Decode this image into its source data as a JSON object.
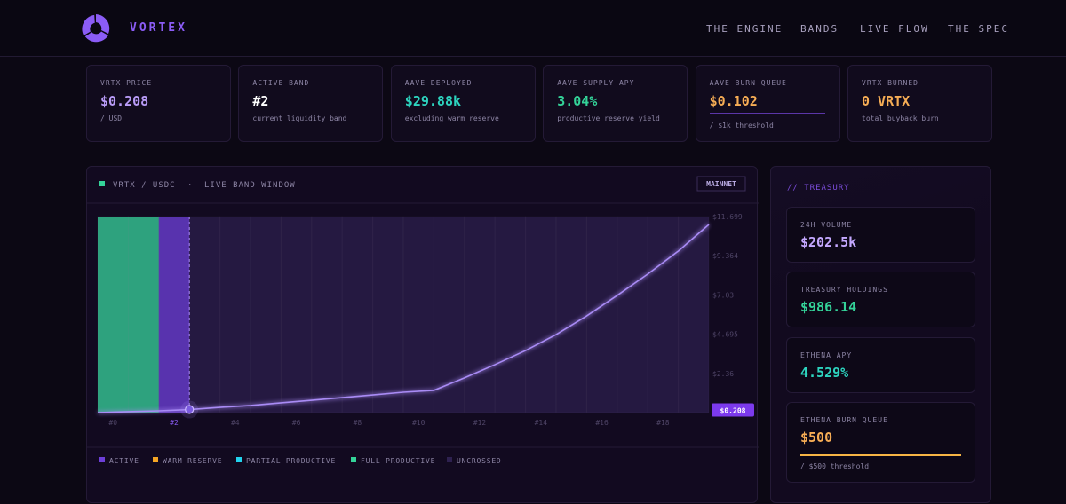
{
  "nav": {
    "brand": "VORTEX",
    "links": [
      "THE ENGINE",
      "BANDS",
      "LIVE FLOW",
      "THE SPEC"
    ]
  },
  "stats": [
    {
      "label": "VRTX PRICE",
      "value": "$0.208",
      "note": "/ USD",
      "color": "#b99cf7"
    },
    {
      "label": "ACTIVE BAND",
      "value": "#2",
      "note": "current liquidity band",
      "color": "#ffffff"
    },
    {
      "label": "AAVE DEPLOYED",
      "value": "$29.88k",
      "note": "excluding warm reserve",
      "color": "#2dd4bf"
    },
    {
      "label": "AAVE SUPPLY APY",
      "value": "3.04%",
      "note": "productive reserve yield",
      "color": "#34d399"
    },
    {
      "label": "AAVE BURN QUEUE",
      "value": "$0.102",
      "note": "/ $1k threshold",
      "color": "#f6ad55",
      "bar": true,
      "bar_color": "#5b36a8"
    },
    {
      "label": "VRTX BURNED",
      "value": "0 VRTX",
      "note": "total buyback burn",
      "color": "#f6ad55"
    }
  ],
  "chart_data": {
    "type": "line",
    "title": "VRTX / USDC",
    "subtitle": "LIVE BAND WINDOW",
    "badge": "MAINNET",
    "color": "#a98bf5",
    "x": [
      0,
      1,
      2,
      3,
      4,
      5,
      6,
      7,
      8,
      9,
      10,
      11,
      12,
      13,
      14,
      15,
      16,
      17,
      18,
      19,
      20
    ],
    "values": [
      0.025,
      0.08,
      0.13,
      0.208,
      0.34,
      0.45,
      0.61,
      0.76,
      0.92,
      1.08,
      1.24,
      1.35,
      2.09,
      2.88,
      3.72,
      4.67,
      5.78,
      7.0,
      8.27,
      9.64,
      11.22
    ],
    "categories": [
      "#0",
      null,
      "#2",
      null,
      "#4",
      null,
      "#6",
      null,
      "#8",
      null,
      "#10",
      null,
      "#12",
      null,
      "#14",
      null,
      "#16",
      null,
      "#18",
      null
    ],
    "band_legend": [
      3,
      3,
      0,
      4,
      4,
      4,
      4,
      4,
      4,
      4,
      4,
      4,
      4,
      4,
      4,
      4,
      4,
      4,
      4,
      4
    ],
    "legend": [
      {
        "name": "ACTIVE",
        "color": "#6d3fd9"
      },
      {
        "name": "WARM RESERVE",
        "color": "#f5a524"
      },
      {
        "name": "PARTIAL PRODUCTIVE",
        "color": "#22d3ee"
      },
      {
        "name": "FULL PRODUCTIVE",
        "color": "#34d399"
      },
      {
        "name": "UNCROSSED",
        "color": "#2e2150"
      }
    ],
    "xlim": [
      0,
      20
    ],
    "ylim": [
      0.025,
      11.699
    ],
    "yticks": [
      {
        "value": 11.699,
        "label": "$11.699"
      },
      {
        "value": 9.364,
        "label": "$9.364"
      },
      {
        "value": 7.03,
        "label": "$7.03"
      },
      {
        "value": 4.695,
        "label": "$4.695"
      },
      {
        "value": 2.36,
        "label": "$2.36"
      }
    ],
    "current": {
      "x": 3,
      "value": 0.208,
      "label": "$0.208"
    }
  },
  "treasury": {
    "title": "// TREASURY",
    "cards": [
      {
        "label": "24H VOLUME",
        "value": "$202.5k",
        "color": "#c4a8ff"
      },
      {
        "label": "TREASURY HOLDINGS",
        "value": "$986.14",
        "color": "#34d399"
      },
      {
        "label": "ETHENA APY",
        "value": "4.529%",
        "color": "#2dd4bf"
      },
      {
        "label": "ETHENA BURN QUEUE",
        "value": "$500",
        "note": "/ $500 threshold",
        "color": "#f6ad55",
        "bar": true,
        "bar_color": "#f6b445"
      }
    ]
  }
}
